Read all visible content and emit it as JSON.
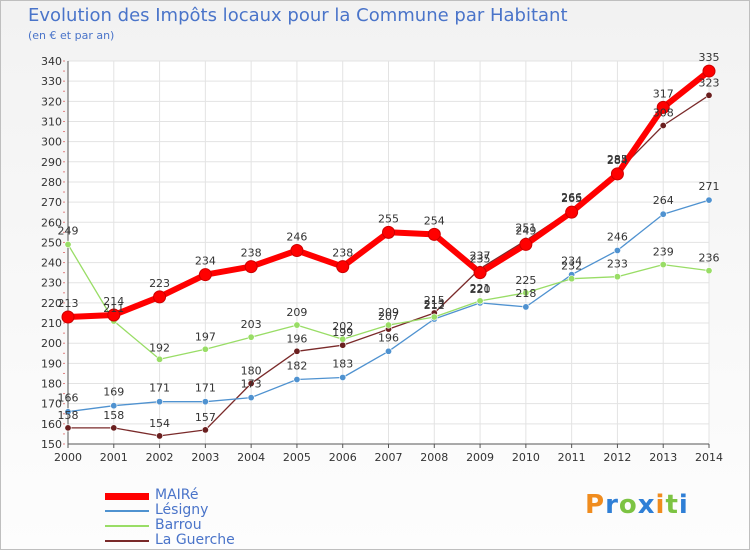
{
  "chart_data": {
    "type": "line",
    "title": "Evolution des Impôts locaux pour la Commune par Habitant",
    "subtitle": "(en € et par an)",
    "xlabel": "",
    "ylabel": "",
    "x": [
      2000,
      2001,
      2002,
      2003,
      2004,
      2005,
      2006,
      2007,
      2008,
      2009,
      2010,
      2011,
      2012,
      2013,
      2014
    ],
    "ylim": [
      150,
      340
    ],
    "yticks": [
      150,
      160,
      170,
      180,
      190,
      200,
      210,
      220,
      230,
      240,
      250,
      260,
      270,
      280,
      290,
      300,
      310,
      320,
      330,
      340
    ],
    "grid": true,
    "legend_position": "bottom-left",
    "series": [
      {
        "name": "MAIRé",
        "color": "#ff0000",
        "values": [
          213,
          214,
          223,
          234,
          238,
          246,
          238,
          255,
          254,
          235,
          249,
          265,
          284,
          317,
          335
        ]
      },
      {
        "name": "Lésigny",
        "color": "#4f92d0",
        "values": [
          166,
          169,
          171,
          171,
          173,
          182,
          183,
          196,
          212,
          220,
          218,
          234,
          246,
          264,
          271
        ]
      },
      {
        "name": "Barrou",
        "color": "#99dd66",
        "values": [
          249,
          211,
          192,
          197,
          203,
          209,
          202,
          209,
          213,
          221,
          225,
          232,
          233,
          239,
          236
        ]
      },
      {
        "name": "La Guerche",
        "color": "#7a2a2a",
        "values": [
          158,
          158,
          154,
          157,
          180,
          196,
          199,
          207,
          215,
          237,
          251,
          266,
          285,
          308,
          323
        ]
      }
    ]
  },
  "brand": {
    "letters": [
      "P",
      "r",
      "o",
      "x",
      "i",
      "t",
      "i"
    ],
    "colors": [
      "#f08c1e",
      "#2f7fd6",
      "#7cc342",
      "#2f7fd6",
      "#f08c1e",
      "#7cc342",
      "#2f7fd6"
    ]
  }
}
